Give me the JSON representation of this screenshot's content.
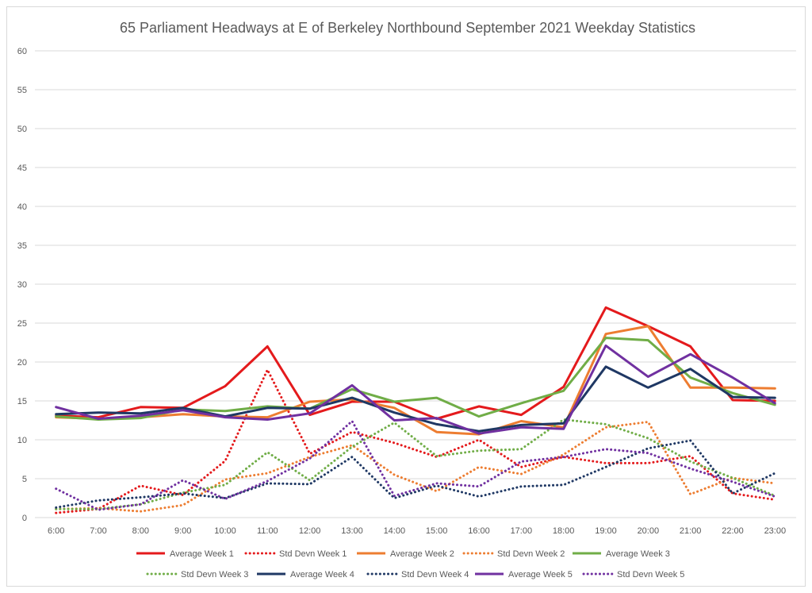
{
  "chart_data": {
    "type": "line",
    "title": "65 Parliament Headways at E of Berkeley Northbound September 2021 Weekday Statistics",
    "xlabel": "",
    "ylabel": "",
    "ylim": [
      0,
      60
    ],
    "yticks": [
      0,
      5,
      10,
      15,
      20,
      25,
      30,
      35,
      40,
      45,
      50,
      55,
      60
    ],
    "grid": true,
    "legend_position": "bottom",
    "categories": [
      "6:00",
      "7:00",
      "8:00",
      "9:00",
      "10:00",
      "11:00",
      "12:00",
      "13:00",
      "14:00",
      "15:00",
      "16:00",
      "17:00",
      "18:00",
      "19:00",
      "20:00",
      "21:00",
      "22:00",
      "23:00"
    ],
    "series": [
      {
        "name": "Average Week 1",
        "color": "#e41a1c",
        "dash": "solid",
        "values": [
          13.1,
          12.9,
          14.2,
          14.1,
          16.9,
          22.0,
          13.2,
          14.9,
          14.9,
          12.7,
          14.3,
          13.2,
          16.8,
          27.0,
          24.6,
          22.0,
          15.1,
          15.0
        ]
      },
      {
        "name": "Std Devn Week 1",
        "color": "#e41a1c",
        "dash": "dotted",
        "values": [
          0.6,
          1.1,
          4.1,
          2.9,
          7.3,
          19.0,
          8.2,
          11.0,
          9.6,
          7.8,
          10.0,
          6.5,
          7.8,
          7.0,
          7.0,
          7.9,
          3.1,
          2.3
        ]
      },
      {
        "name": "Average Week 2",
        "color": "#ed7d31",
        "dash": "solid",
        "values": [
          12.9,
          12.7,
          12.9,
          13.3,
          13.0,
          12.9,
          14.9,
          15.2,
          14.1,
          11.0,
          10.7,
          12.4,
          11.6,
          23.6,
          24.6,
          16.7,
          16.7,
          16.6
        ]
      },
      {
        "name": "Std Devn Week 2",
        "color": "#ed7d31",
        "dash": "dotted",
        "values": [
          1.1,
          1.2,
          0.8,
          1.6,
          4.9,
          5.7,
          7.8,
          9.3,
          5.5,
          3.4,
          6.5,
          5.6,
          8.1,
          11.6,
          12.3,
          3.0,
          5.1,
          4.4
        ]
      },
      {
        "name": "Average Week 3",
        "color": "#70ad47",
        "dash": "solid",
        "values": [
          13.0,
          12.6,
          12.8,
          13.9,
          13.7,
          14.3,
          14.0,
          16.5,
          14.9,
          15.4,
          13.0,
          14.7,
          16.3,
          23.1,
          22.8,
          18.0,
          16.0,
          14.5
        ]
      },
      {
        "name": "Std Devn Week 3",
        "color": "#70ad47",
        "dash": "dotted",
        "values": [
          1.1,
          1.1,
          1.7,
          3.2,
          4.2,
          8.4,
          4.8,
          9.1,
          12.2,
          7.9,
          8.6,
          8.8,
          12.6,
          12.0,
          10.2,
          7.2,
          5.1,
          2.8
        ]
      },
      {
        "name": "Average Week 4",
        "color": "#1f3864",
        "dash": "solid",
        "values": [
          13.3,
          13.5,
          13.4,
          14.1,
          13.0,
          14.1,
          14.0,
          15.4,
          13.5,
          12.0,
          11.1,
          11.9,
          12.1,
          19.4,
          16.7,
          19.1,
          15.5,
          15.4
        ]
      },
      {
        "name": "Std Devn Week 4",
        "color": "#1f3864",
        "dash": "dotted",
        "values": [
          1.3,
          2.2,
          2.6,
          3.1,
          2.5,
          4.4,
          4.3,
          7.8,
          2.5,
          4.1,
          2.7,
          4.0,
          4.2,
          6.5,
          8.9,
          9.9,
          3.1,
          5.7
        ]
      },
      {
        "name": "Average Week 5",
        "color": "#7030a0",
        "dash": "solid",
        "values": [
          14.2,
          12.7,
          13.1,
          13.8,
          12.9,
          12.6,
          13.4,
          17.0,
          12.5,
          12.8,
          10.8,
          11.6,
          11.4,
          22.1,
          18.1,
          21.0,
          18.0,
          14.7
        ]
      },
      {
        "name": "Std Devn Week 5",
        "color": "#7030a0",
        "dash": "dotted",
        "values": [
          3.7,
          1.0,
          1.7,
          4.8,
          2.4,
          4.7,
          7.6,
          12.4,
          2.8,
          4.4,
          4.0,
          7.2,
          7.8,
          8.8,
          8.3,
          6.3,
          4.6,
          2.7
        ]
      }
    ]
  }
}
